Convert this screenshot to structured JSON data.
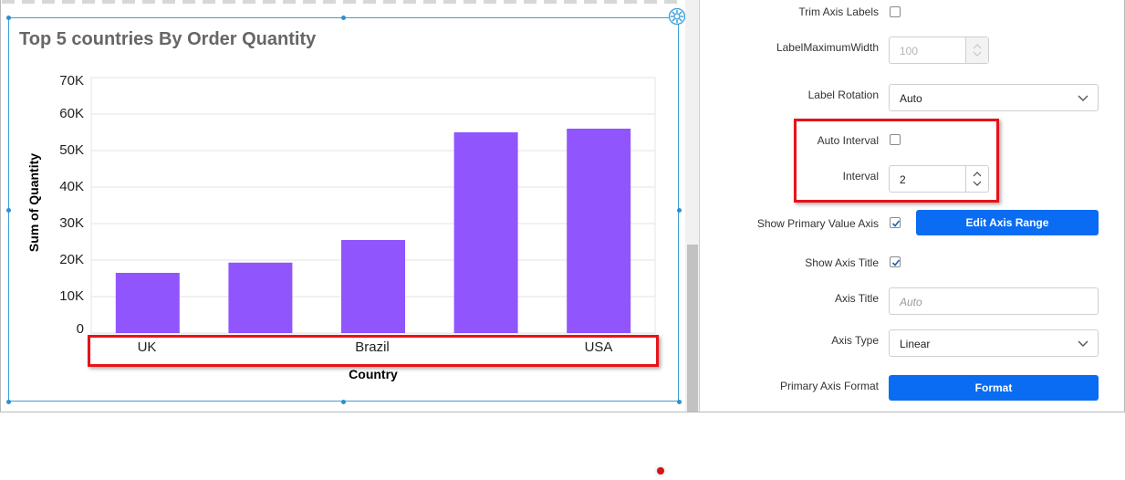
{
  "chart_data": {
    "type": "bar",
    "title": "Top 5 countries By Order Quantity",
    "xlabel": "Country",
    "ylabel": "Sum of Quantity",
    "categories": [
      "UK",
      "",
      "Brazil",
      "",
      "USA"
    ],
    "values": [
      16500,
      19300,
      25500,
      55000,
      56000
    ],
    "ylim": [
      0,
      70000
    ],
    "yticks": [
      "0",
      "10K",
      "20K",
      "30K",
      "40K",
      "50K",
      "60K",
      "70K"
    ],
    "grid": true,
    "bar_color": "#9155fd"
  },
  "panel": {
    "trim_axis_labels": "Trim Axis Labels",
    "label_max_width_label": "LabelMaximumWidth",
    "label_max_width_value": "100",
    "label_rotation_label": "Label Rotation",
    "label_rotation_value": "Auto",
    "auto_interval_label": "Auto Interval",
    "interval_label": "Interval",
    "interval_value": "2",
    "show_primary_value_axis_label": "Show Primary Value Axis",
    "edit_axis_range_button": "Edit Axis Range",
    "show_axis_title_label": "Show Axis Title",
    "axis_title_label": "Axis Title",
    "axis_title_placeholder": "Auto",
    "axis_type_label": "Axis Type",
    "axis_type_value": "Linear",
    "primary_axis_format_label": "Primary Axis Format",
    "format_button": "Format"
  },
  "colors": {
    "accent": "#0a6cf2",
    "highlight": "#e8121a",
    "widget_border": "#3aa0d8"
  },
  "icons": {
    "settings": "gear-icon",
    "dropdown": "chevron-down-icon",
    "stepper": "spin-arrows-icon"
  }
}
